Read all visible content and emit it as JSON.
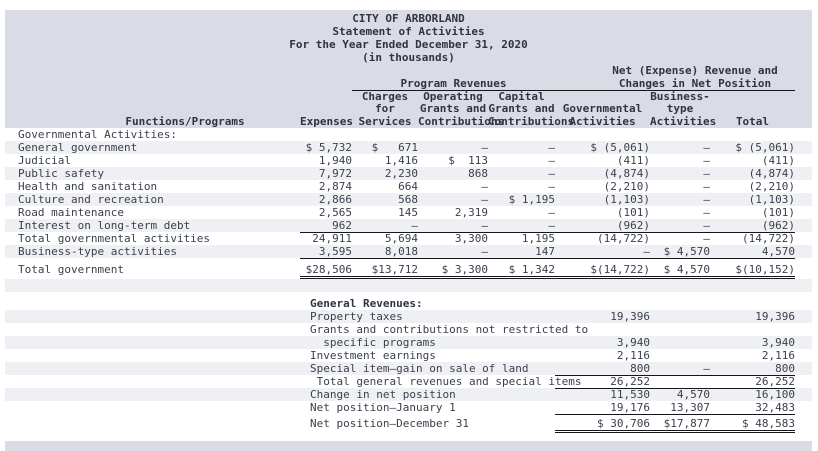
{
  "colors": {
    "band": "#d9dce5",
    "stripe": "#eff0f4",
    "text": "#3a3f4b",
    "heading": "#2e3442",
    "rule": "#15151a"
  },
  "title_lines": [
    "CITY OF ARBORLAND",
    "Statement of Activities",
    "For the Year Ended December 31, 2020",
    "(in thousands)"
  ],
  "header": {
    "net_changes_top": "Net (Expense) Revenue and",
    "program_revenues": "Program Revenues",
    "net_changes_bottom": "Changes in Net Position",
    "column_lines": [
      [
        "",
        "",
        "Charges",
        "Operating",
        "Capital",
        "",
        "Business-",
        ""
      ],
      [
        "",
        "",
        "for",
        "Grants and",
        "Grants and",
        "Governmental",
        "type",
        ""
      ],
      [
        "Functions/Programs",
        "Expenses",
        "Services",
        "Contributions",
        "Contributions",
        "Activities",
        "Activities",
        "Total"
      ]
    ]
  },
  "rows": [
    {
      "t": "m",
      "label": "Governmental Activities:",
      "cells": [
        "",
        "",
        "",
        "",
        "",
        "",
        ""
      ]
    },
    {
      "t": "m",
      "s": 1,
      "label": "General government",
      "cells": [
        "$ 5,732",
        "$   671",
        "–",
        "–",
        "$ (5,061)",
        "–",
        "$ (5,061)"
      ]
    },
    {
      "t": "m",
      "label": "Judicial",
      "cells": [
        "1,940",
        "1,416",
        "$  113",
        "–",
        "(411)",
        "–",
        "(411)"
      ]
    },
    {
      "t": "m",
      "s": 1,
      "label": "Public safety",
      "cells": [
        "7,972",
        "2,230",
        "868",
        "–",
        "(4,874)",
        "–",
        "(4,874)"
      ]
    },
    {
      "t": "m",
      "label": "Health and sanitation",
      "cells": [
        "2,874",
        "664",
        "–",
        "–",
        "(2,210)",
        "–",
        "(2,210)"
      ]
    },
    {
      "t": "m",
      "s": 1,
      "label": "Culture and recreation",
      "cells": [
        "2,866",
        "568",
        "–",
        "$ 1,195",
        "(1,103)",
        "–",
        "(1,103)"
      ]
    },
    {
      "t": "m",
      "label": "Road maintenance",
      "cells": [
        "2,565",
        "145",
        "2,319",
        "–",
        "(101)",
        "–",
        "(101)"
      ]
    },
    {
      "t": "m",
      "s": 1,
      "r": 1,
      "label": "Interest on long-term debt",
      "cells": [
        "962",
        "–",
        "–",
        "–",
        "(962)",
        "–",
        "(962)"
      ]
    },
    {
      "t": "m",
      "label": "Total governmental activities",
      "cells": [
        "24,911",
        "5,694",
        "3,300",
        "1,195",
        "(14,722)",
        "–",
        "(14,722)"
      ]
    },
    {
      "t": "m",
      "s": 1,
      "r": 1,
      "label": "Business-type activities",
      "cells": [
        "3,595",
        "8,018",
        "–",
        "147",
        "–",
        "$ 4,570",
        "4,570"
      ]
    },
    {
      "t": "sp",
      "h": 6
    },
    {
      "t": "m",
      "d": 1,
      "label": "Total government",
      "cells": [
        "$28,506",
        "$13,712",
        "$ 3,300",
        "$ 1,342",
        "$(14,722)",
        "$ 4,570",
        "$(10,152)"
      ]
    },
    {
      "t": "sp",
      "h": 13,
      "s": 1
    },
    {
      "t": "sp",
      "h": 5
    },
    {
      "t": "g",
      "b": 1,
      "label": "General Revenues:",
      "cells": [
        "",
        "",
        ""
      ]
    },
    {
      "t": "g",
      "s": 1,
      "label": "Property taxes",
      "cells": [
        "19,396",
        "",
        "19,396"
      ]
    },
    {
      "t": "g",
      "label": "Grants and contributions not restricted to",
      "cells": [
        "",
        "",
        ""
      ]
    },
    {
      "t": "g",
      "s": 1,
      "label": "  specific programs",
      "cells": [
        "3,940",
        "",
        "3,940"
      ]
    },
    {
      "t": "g",
      "label": "Investment earnings",
      "cells": [
        "2,116",
        "",
        "2,116"
      ]
    },
    {
      "t": "g",
      "s": 1,
      "r": 1,
      "label": "Special item—gain on sale of land",
      "cells": [
        "800",
        "–",
        "800"
      ]
    },
    {
      "t": "g",
      "r": 1,
      "label": " Total general revenues and special items",
      "cells": [
        "26,252",
        "",
        "26,252"
      ]
    },
    {
      "t": "g",
      "s": 1,
      "label": "Change in net position",
      "cells": [
        "11,530",
        "4,570",
        "16,100"
      ]
    },
    {
      "t": "g",
      "r": 1,
      "label": "Net position—January 1",
      "cells": [
        "19,176",
        "13,307",
        "32,483"
      ]
    },
    {
      "t": "sp",
      "h": 4
    },
    {
      "t": "g",
      "d": 1,
      "label": "Net position—December 31",
      "cells": [
        "$ 30,706",
        "$17,877",
        "$ 48,583"
      ]
    }
  ]
}
